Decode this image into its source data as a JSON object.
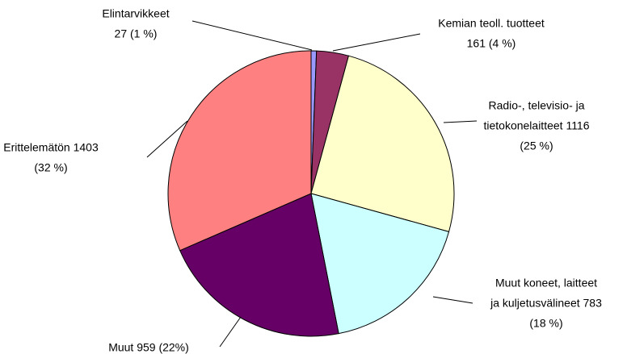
{
  "chart_data": {
    "type": "pie",
    "categories": [
      "Elintarvikkeet",
      "Kemian teoll. tuotteet",
      "Radio-, televisio- ja tietokonelaitteet",
      "Muut koneet, laitteet ja kuljetusvälineet",
      "Muut",
      "Erittelemätön"
    ],
    "values": [
      27,
      161,
      1116,
      783,
      959,
      1403
    ],
    "labels": [
      [
        "Elintarvikkeet",
        "27 (1 %)"
      ],
      [
        "Kemian teoll. tuotteet",
        "161 (4 %)"
      ],
      [
        "Radio-, televisio- ja",
        "tietokonelaitteet 1116",
        "(25 %)"
      ],
      [
        "Muut koneet, laitteet",
        "ja kuljetusvälineet 783",
        "(18 %)"
      ],
      [
        "Muut  959 (22%)"
      ],
      [
        "Erittelemätön  1403",
        "(32 %)"
      ]
    ],
    "colors": [
      "#9999ff",
      "#993366",
      "#ffffcc",
      "#ccffff",
      "#660066",
      "#ff8080"
    ]
  }
}
